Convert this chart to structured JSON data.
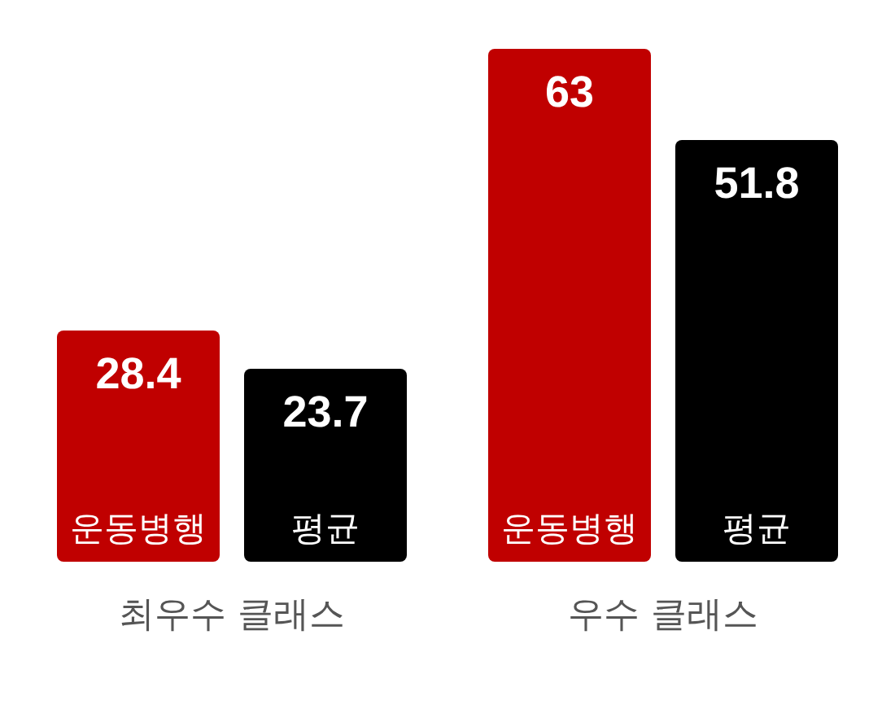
{
  "chart_data": {
    "type": "bar",
    "categories": [
      "최우수 클래스",
      "우수 클래스"
    ],
    "series": [
      {
        "name": "운동병행",
        "color": "#c00000",
        "values": [
          28.4,
          63
        ]
      },
      {
        "name": "평균",
        "color": "#000000",
        "values": [
          23.7,
          51.8
        ]
      }
    ],
    "data_labels": true
  }
}
